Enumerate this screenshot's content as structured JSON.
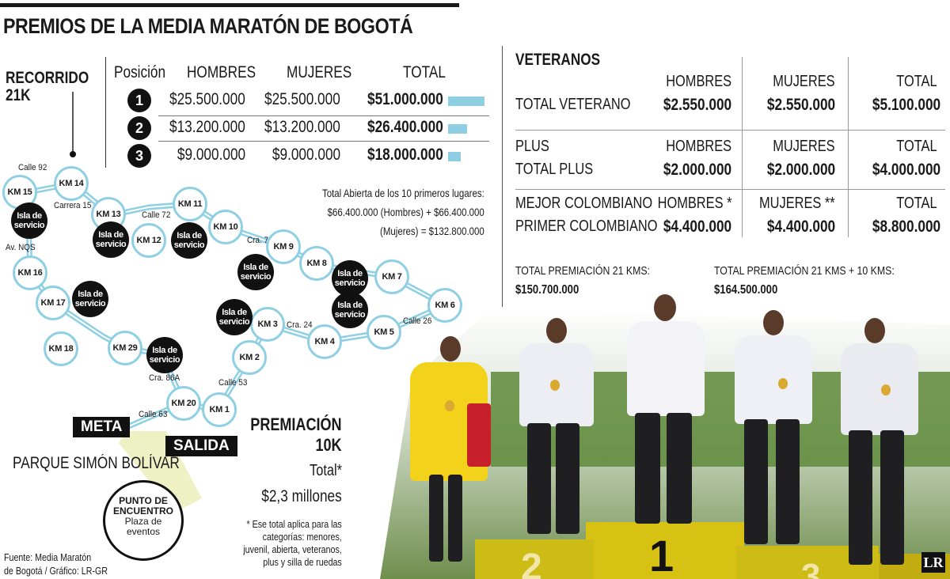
{
  "title": "PREMIOS DE LA MEDIA MARATÓN DE BOGOTÁ",
  "recorrido": {
    "line1": "RECORRIDO",
    "line2": "21K"
  },
  "prize_table": {
    "headers": [
      "Posición",
      "HOMBRES",
      "MUJERES",
      "TOTAL"
    ],
    "rows": [
      {
        "pos": "1",
        "hombres": "$25.500.000",
        "mujeres": "$25.500.000",
        "total": "$51.000.000",
        "total_value": 51000000
      },
      {
        "pos": "2",
        "hombres": "$13.200.000",
        "mujeres": "$13.200.000",
        "total": "$26.400.000",
        "total_value": 26400000
      },
      {
        "pos": "3",
        "hombres": "$9.000.000",
        "mujeres": "$9.000.000",
        "total": "$18.000.000",
        "total_value": 18000000
      }
    ],
    "bar_color": "#8ecfe4"
  },
  "abierta_note": {
    "line1": "Total Abierta de los 10 primeros lugares:",
    "line2": "$66.400.000 (Hombres) + $66.400.000",
    "line3": "(Mujeres) = $132.800.000"
  },
  "map": {
    "km_labels": [
      "KM 1",
      "KM 2",
      "KM 3",
      "KM 4",
      "KM 5",
      "KM 6",
      "KM 7",
      "KM 8",
      "KM 9",
      "KM 10",
      "KM 11",
      "KM 12",
      "KM 13",
      "KM 14",
      "KM 15",
      "KM 16",
      "KM 17",
      "KM 18",
      "KM 20",
      "KM 29"
    ],
    "isla_label_1": "Isla de",
    "isla_label_2": "servicio",
    "streets": [
      "Calle 92",
      "Carrera 15",
      "Calle 72",
      "Av. NQS",
      "Cra. 7",
      "Cra. 24",
      "Calle 26",
      "Calle 53",
      "Cra. 86A",
      "Calle 63"
    ],
    "meta": "META",
    "salida": "SALIDA",
    "parque": "PARQUE SIMÓN BOLÍVAR",
    "punto": {
      "l1": "PUNTO DE",
      "l2": "ENCUENTRO",
      "l3": "Plaza de",
      "l4": "eventos"
    },
    "route_color": "#8ecfe4"
  },
  "premiacion_10k": {
    "title1": "PREMIACIÓN",
    "title2": "10K",
    "total_label": "Total*",
    "amount": "$2,3 millones",
    "footnote1": "* Ese total aplica para las",
    "footnote2": "categorías: menores,",
    "footnote3": "juvenil, abierta, veteranos,",
    "footnote4": "plus y silla de ruedas"
  },
  "fuente": {
    "line1": "Fuente: Media Maratón",
    "line2": "de Bogotá / Gráfico: LR-GR"
  },
  "veteranos": {
    "title": "VETERANOS",
    "sections": [
      {
        "row1_label": "",
        "row2_label": "TOTAL VETERANO",
        "hombres_hdr": "HOMBRES",
        "mujeres_hdr": "MUJERES",
        "total_hdr": "TOTAL",
        "hombres": "$2.550.000",
        "mujeres": "$2.550.000",
        "total": "$5.100.000"
      },
      {
        "row1_label": "PLUS",
        "row2_label": "TOTAL PLUS",
        "hombres_hdr": "HOMBRES",
        "mujeres_hdr": "MUJERES",
        "total_hdr": "TOTAL",
        "hombres": "$2.000.000",
        "mujeres": "$2.000.000",
        "total": "$4.000.000"
      },
      {
        "row1_label": "MEJOR COLOMBIANO",
        "row2_label": "PRIMER COLOMBIANO",
        "hombres_hdr": "HOMBRES *",
        "mujeres_hdr": "MUJERES **",
        "total_hdr": "TOTAL",
        "hombres": "$4.400.000",
        "mujeres": "$4.400.000",
        "total": "$8.800.000"
      }
    ]
  },
  "totals": {
    "t21_label": "TOTAL PREMIACIÓN 21 KMS:",
    "t21_value": "$150.700.000",
    "t2110_label": "TOTAL PREMIACIÓN 21 KMS + 10 KMS:",
    "t2110_value": "$164.500.000"
  },
  "photo": {
    "logo": "LR",
    "podium_2": "2",
    "podium_1": "1",
    "podium_3": "3"
  }
}
